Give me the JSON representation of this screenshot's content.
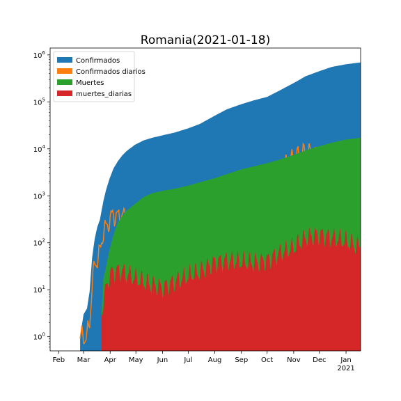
{
  "chart_data": {
    "type": "area",
    "title": "Romania(2021-01-18)",
    "xlabel": "",
    "ylabel": "",
    "yscale": "log",
    "ylim": [
      0.5,
      1400000
    ],
    "xlim": [
      "2020-01-22",
      "2021-01-18"
    ],
    "legend_position": "top-left",
    "grid": false,
    "x_ticks": [
      {
        "date": "2020-02-01",
        "label": "Feb",
        "sub": ""
      },
      {
        "date": "2020-03-01",
        "label": "Mar",
        "sub": ""
      },
      {
        "date": "2020-04-01",
        "label": "Apr",
        "sub": ""
      },
      {
        "date": "2020-05-01",
        "label": "May",
        "sub": ""
      },
      {
        "date": "2020-06-01",
        "label": "Jun",
        "sub": ""
      },
      {
        "date": "2020-07-01",
        "label": "Jul",
        "sub": ""
      },
      {
        "date": "2020-08-01",
        "label": "Aug",
        "sub": ""
      },
      {
        "date": "2020-09-01",
        "label": "Sep",
        "sub": ""
      },
      {
        "date": "2020-10-01",
        "label": "Oct",
        "sub": ""
      },
      {
        "date": "2020-11-01",
        "label": "Nov",
        "sub": ""
      },
      {
        "date": "2020-12-01",
        "label": "Dec",
        "sub": ""
      },
      {
        "date": "2021-01-01",
        "label": "Jan",
        "sub": "2021"
      }
    ],
    "y_ticks": [
      {
        "value": 1,
        "base": "10",
        "exp": "0"
      },
      {
        "value": 10,
        "base": "10",
        "exp": "1"
      },
      {
        "value": 100,
        "base": "10",
        "exp": "2"
      },
      {
        "value": 1000,
        "base": "10",
        "exp": "3"
      },
      {
        "value": 10000,
        "base": "10",
        "exp": "4"
      },
      {
        "value": 100000,
        "base": "10",
        "exp": "5"
      },
      {
        "value": 1000000,
        "base": "10",
        "exp": "6"
      }
    ],
    "series": [
      {
        "name": "Confirmados",
        "color": "#1f77b4",
        "style": "area",
        "points": [
          [
            "2020-02-26",
            1
          ],
          [
            "2020-03-01",
            3
          ],
          [
            "2020-03-05",
            4
          ],
          [
            "2020-03-08",
            9
          ],
          [
            "2020-03-11",
            49
          ],
          [
            "2020-03-14",
            123
          ],
          [
            "2020-03-17",
            217
          ],
          [
            "2020-03-20",
            308
          ],
          [
            "2020-03-24",
            762
          ],
          [
            "2020-03-27",
            1292
          ],
          [
            "2020-03-31",
            2245
          ],
          [
            "2020-04-05",
            3864
          ],
          [
            "2020-04-10",
            5467
          ],
          [
            "2020-04-15",
            7216
          ],
          [
            "2020-04-20",
            8936
          ],
          [
            "2020-04-30",
            12240
          ],
          [
            "2020-05-10",
            15131
          ],
          [
            "2020-05-20",
            17191
          ],
          [
            "2020-06-01",
            19398
          ],
          [
            "2020-06-15",
            22165
          ],
          [
            "2020-07-01",
            27296
          ],
          [
            "2020-07-15",
            34226
          ],
          [
            "2020-08-01",
            50886
          ],
          [
            "2020-08-15",
            69374
          ],
          [
            "2020-09-01",
            89316
          ],
          [
            "2020-09-15",
            107011
          ],
          [
            "2020-10-01",
            127572
          ],
          [
            "2020-10-15",
            172516
          ],
          [
            "2020-11-01",
            251713
          ],
          [
            "2020-11-15",
            352313
          ],
          [
            "2020-12-01",
            451230
          ],
          [
            "2020-12-15",
            552611
          ],
          [
            "2021-01-01",
            632263
          ],
          [
            "2021-01-18",
            692000
          ]
        ]
      },
      {
        "name": "Confirmados diarios",
        "color": "#ff7f0e",
        "style": "line",
        "points": [
          [
            "2020-02-26",
            1
          ],
          [
            "2020-03-01",
            1
          ],
          [
            "2020-03-05",
            1
          ],
          [
            "2020-03-08",
            2
          ],
          [
            "2020-03-11",
            13
          ],
          [
            "2020-03-14",
            35
          ],
          [
            "2020-03-17",
            45
          ],
          [
            "2020-03-20",
            60
          ],
          [
            "2020-03-24",
            180
          ],
          [
            "2020-03-27",
            200
          ],
          [
            "2020-03-31",
            300
          ],
          [
            "2020-04-05",
            400
          ],
          [
            "2020-04-10",
            350
          ],
          [
            "2020-04-15",
            380
          ],
          [
            "2020-04-20",
            330
          ],
          [
            "2020-04-30",
            300
          ],
          [
            "2020-05-10",
            250
          ],
          [
            "2020-05-20",
            180
          ],
          [
            "2020-06-01",
            170
          ],
          [
            "2020-06-15",
            280
          ],
          [
            "2020-07-01",
            400
          ],
          [
            "2020-07-15",
            700
          ],
          [
            "2020-08-01",
            1200
          ],
          [
            "2020-08-15",
            1300
          ],
          [
            "2020-09-01",
            1200
          ],
          [
            "2020-09-15",
            1300
          ],
          [
            "2020-10-01",
            1700
          ],
          [
            "2020-10-15",
            3300
          ],
          [
            "2020-11-01",
            6000
          ],
          [
            "2020-11-15",
            8500
          ],
          [
            "2020-12-01",
            7000
          ],
          [
            "2020-12-15",
            5500
          ],
          [
            "2021-01-01",
            3500
          ],
          [
            "2021-01-18",
            2500
          ]
        ]
      },
      {
        "name": "Muertes",
        "color": "#2ca02c",
        "style": "area",
        "points": [
          [
            "2020-03-22",
            3
          ],
          [
            "2020-03-24",
            17
          ],
          [
            "2020-03-27",
            30
          ],
          [
            "2020-03-31",
            69
          ],
          [
            "2020-04-05",
            151
          ],
          [
            "2020-04-10",
            270
          ],
          [
            "2020-04-15",
            372
          ],
          [
            "2020-04-20",
            478
          ],
          [
            "2020-04-30",
            675
          ],
          [
            "2020-05-10",
            943
          ],
          [
            "2020-05-20",
            1137
          ],
          [
            "2020-06-01",
            1276
          ],
          [
            "2020-06-15",
            1411
          ],
          [
            "2020-07-01",
            1651
          ],
          [
            "2020-07-15",
            1952
          ],
          [
            "2020-08-01",
            2376
          ],
          [
            "2020-08-15",
            2900
          ],
          [
            "2020-09-01",
            3657
          ],
          [
            "2020-09-15",
            4221
          ],
          [
            "2020-10-01",
            4962
          ],
          [
            "2020-10-15",
            5850
          ],
          [
            "2020-11-01",
            7400
          ],
          [
            "2020-11-15",
            9290
          ],
          [
            "2020-12-01",
            11420
          ],
          [
            "2020-12-15",
            13480
          ],
          [
            "2021-01-01",
            15800
          ],
          [
            "2021-01-18",
            17200
          ]
        ]
      },
      {
        "name": "muertes_diarias",
        "color": "#d62728",
        "style": "area",
        "points": [
          [
            "2020-03-22",
            3
          ],
          [
            "2020-03-24",
            6
          ],
          [
            "2020-03-27",
            10
          ],
          [
            "2020-03-31",
            20
          ],
          [
            "2020-04-05",
            25
          ],
          [
            "2020-04-10",
            25
          ],
          [
            "2020-04-15",
            25
          ],
          [
            "2020-04-20",
            22
          ],
          [
            "2020-04-30",
            18
          ],
          [
            "2020-05-10",
            15
          ],
          [
            "2020-05-20",
            13
          ],
          [
            "2020-06-01",
            11
          ],
          [
            "2020-06-15",
            15
          ],
          [
            "2020-07-01",
            20
          ],
          [
            "2020-07-15",
            25
          ],
          [
            "2020-08-01",
            38
          ],
          [
            "2020-08-15",
            42
          ],
          [
            "2020-09-01",
            40
          ],
          [
            "2020-09-15",
            38
          ],
          [
            "2020-10-01",
            42
          ],
          [
            "2020-10-15",
            60
          ],
          [
            "2020-11-01",
            80
          ],
          [
            "2020-11-15",
            130
          ],
          [
            "2020-12-01",
            150
          ],
          [
            "2020-12-15",
            130
          ],
          [
            "2021-01-01",
            110
          ],
          [
            "2021-01-18",
            80
          ]
        ]
      }
    ]
  }
}
